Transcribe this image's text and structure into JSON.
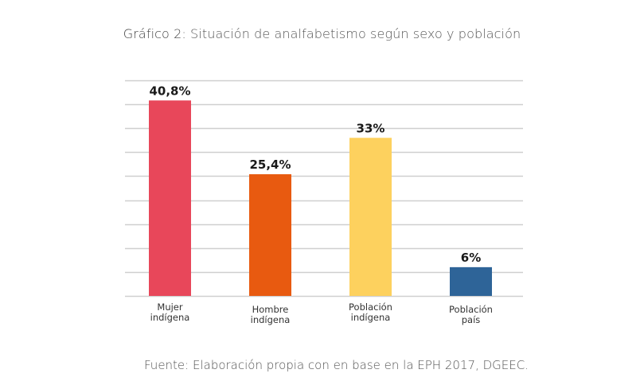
{
  "chart_data": {
    "type": "bar",
    "title_prefix": "Gráfico 2:",
    "title": "Situación de analfabetismo según sexo y población",
    "categories": [
      [
        "Mujer",
        "indígena"
      ],
      [
        "Hombre",
        "indígena"
      ],
      [
        "Población",
        "indígena"
      ],
      [
        "Población",
        "país"
      ]
    ],
    "values": [
      40.8,
      25.4,
      33,
      6
    ],
    "data_labels": [
      "40,8%",
      "25,4%",
      "33%",
      "6%"
    ],
    "colors": [
      "#e8475a",
      "#e85a10",
      "#fdd15e",
      "#2e6498"
    ],
    "xlabel": "",
    "ylabel": "",
    "ylim": [
      0,
      45
    ],
    "ytick_step": 5,
    "y_tick_labels_shown": false,
    "grid": true,
    "legend": "none",
    "source": "Fuente: Elaboración propia con en base en la EPH 2017, DGEEC."
  }
}
